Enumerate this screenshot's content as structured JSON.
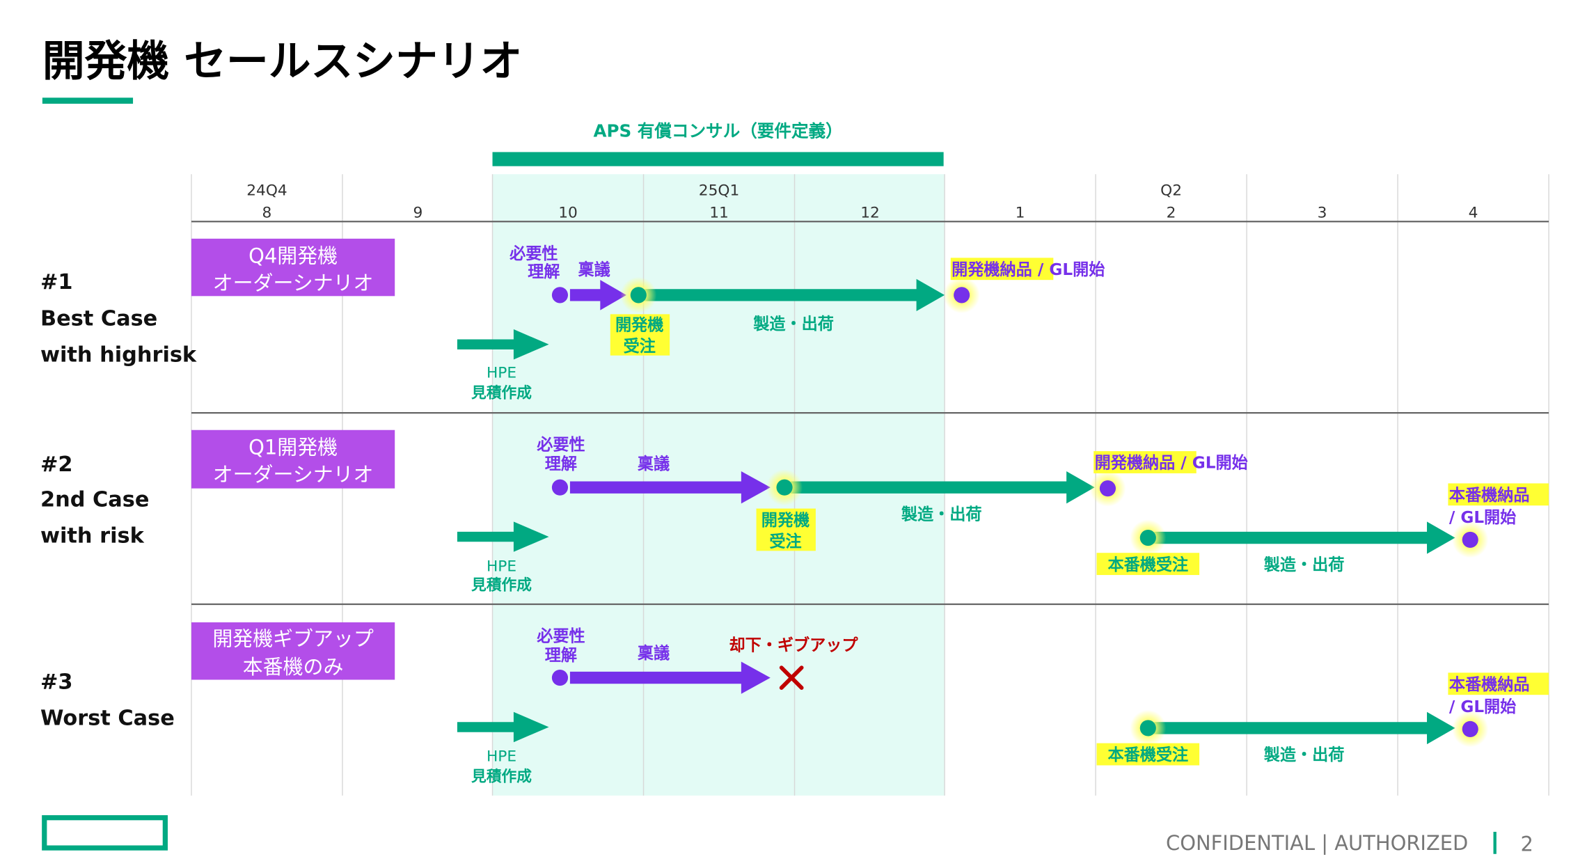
{
  "slide": {
    "title": "開発機 セールスシナリオ",
    "consult_label": "APS 有償コンサル（要件定義）",
    "timeline": {
      "quarters": [
        "24Q4",
        "25Q1",
        "Q2"
      ],
      "months": [
        "8",
        "9",
        "10",
        "11",
        "12",
        "1",
        "2",
        "3",
        "4"
      ]
    },
    "rows": [
      {
        "num": "#1",
        "case": "Best Case",
        "risk": "with highrisk",
        "box": [
          "Q4開発機",
          "オーダーシナリオ"
        ],
        "need": [
          "必要性",
          "理解"
        ],
        "approval": "稟議",
        "order": [
          "開発機",
          "受注"
        ],
        "manufacture": "製造・出荷",
        "delivery": "開発機納品",
        "gl": " / GL開始",
        "hpe": [
          "HPE",
          "見積作成"
        ]
      },
      {
        "num": "#2",
        "case": "2nd Case",
        "risk": "with risk",
        "box": [
          "Q1開発機",
          "オーダーシナリオ"
        ],
        "need": [
          "必要性",
          "理解"
        ],
        "approval": "稟議",
        "order": [
          "開発機",
          "受注"
        ],
        "manufacture": "製造・出荷",
        "delivery": "開発機納品",
        "gl": " / GL開始",
        "prod_order": "本番機受注",
        "prod_manufacture": "製造・出荷",
        "prod_delivery": "本番機納品",
        "prod_gl": "/ GL開始",
        "hpe": [
          "HPE",
          "見積作成"
        ]
      },
      {
        "num": "#3",
        "case": "Worst Case",
        "box": [
          "開発機ギブアップ",
          "本番機のみ"
        ],
        "need": [
          "必要性",
          "理解"
        ],
        "approval": "稟議",
        "rejected": "却下・ギブアップ",
        "prod_order": "本番機受注",
        "prod_manufacture": "製造・出荷",
        "prod_delivery": "本番機納品",
        "prod_gl": "/ GL開始",
        "hpe": [
          "HPE",
          "見積作成"
        ]
      }
    ],
    "icons": {
      "reject": "x-mark-icon",
      "logo": "hpe-logo-rectangle"
    }
  },
  "footer": {
    "classification": "CONFIDENTIAL | AUTHORIZED",
    "page": "2"
  },
  "colors": {
    "teal": "#01a982",
    "purple": "#7630ea",
    "box": "#b34ee9",
    "highlight": "#ffff33",
    "shade": "#e3fbf5",
    "reject": "#c00000"
  }
}
